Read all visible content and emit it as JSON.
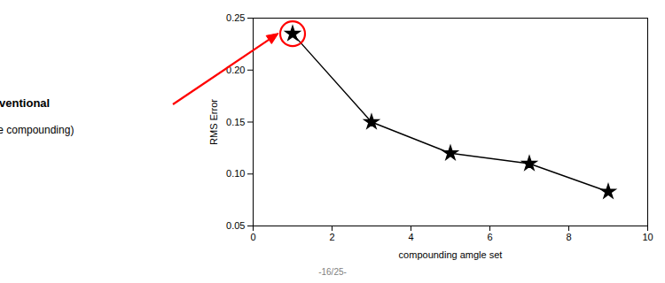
{
  "chart_data": {
    "type": "line",
    "x": [
      1,
      3,
      5,
      7,
      9
    ],
    "values": [
      0.235,
      0.15,
      0.12,
      0.11,
      0.083
    ],
    "xlabel": "compounding amgle set",
    "ylabel": "RMS Error",
    "xlim": [
      0,
      10
    ],
    "ylim": [
      0.05,
      0.25
    ],
    "xticks": [
      0,
      2,
      4,
      6,
      8,
      10
    ],
    "yticks": [
      0.05,
      {
        "value": 0.1,
        "label": "0.10"
      },
      0.15,
      {
        "value": 0.2,
        "label": "0.20"
      },
      0.25
    ],
    "color": "black",
    "marker": "star",
    "grid": false,
    "annotation": {
      "lines": [
        "Conventional",
        "(non-angle compounding)"
      ],
      "x": 1,
      "y": 0.235,
      "color": "red"
    },
    "footer": "-16/25-"
  }
}
